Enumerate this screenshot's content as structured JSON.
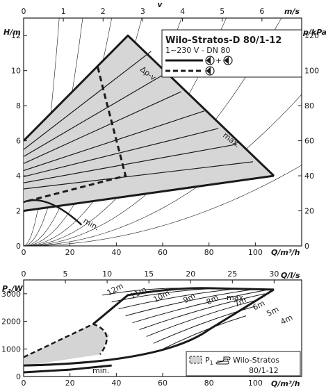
{
  "chart_data": [
    {
      "type": "line",
      "title": "Wilo-Stratos-D 80/1-12",
      "legend": {
        "line1": "1~230 V - DN 80",
        "solid_label": "+",
        "position": "top-right"
      },
      "axes": {
        "x_bottom": {
          "label": "Q/m³/h",
          "lim": [
            0,
            120
          ],
          "ticks": [
            0,
            20,
            40,
            60,
            80,
            100
          ]
        },
        "x_top": {
          "label": "m/s",
          "symbol": "v",
          "lim": [
            0,
            7
          ],
          "ticks": [
            0,
            1,
            2,
            3,
            4,
            5,
            6
          ]
        },
        "y_left": {
          "label": "H/m",
          "lim": [
            0,
            13
          ],
          "ticks": [
            0,
            2,
            4,
            6,
            8,
            10,
            12
          ]
        },
        "y_right": {
          "label": "p/kPa",
          "lim": [
            0,
            130
          ],
          "ticks": [
            0,
            20,
            40,
            60,
            80,
            100,
            120
          ]
        }
      },
      "annotations": {
        "max": "max.",
        "min": "min.",
        "dpv": "Δp-v"
      },
      "series": [
        {
          "role": "max",
          "points": [
            [
              0,
              6.0
            ],
            [
              45,
              12.0
            ],
            [
              108,
              4.0
            ]
          ]
        },
        {
          "role": "lower",
          "points": [
            [
              0,
              2.0
            ],
            [
              108,
              4.0
            ]
          ]
        },
        {
          "role": "min",
          "points": [
            [
              0,
              2.5
            ],
            [
              10,
              2.7
            ],
            [
              25,
              1.2
            ]
          ]
        },
        {
          "role": "dpv_dashed",
          "points": [
            [
              32,
              10.2
            ],
            [
              35,
              8.6
            ],
            [
              44,
              4.0
            ],
            [
              0,
              2.5
            ]
          ]
        },
        {
          "role": "dpv_lines",
          "heads_at_zero": [
            2.85,
            3.3,
            3.75,
            4.2,
            4.6,
            5.05,
            5.5
          ],
          "speed_lines": [
            {
              "h0": 5.5,
              "q1": 55,
              "h1": 11.1
            },
            {
              "h0": 5.1,
              "q1": 62,
              "h1": 9.9
            },
            {
              "h0": 4.7,
              "q1": 68,
              "h1": 8.8
            },
            {
              "h0": 4.3,
              "q1": 78,
              "h1": 7.7
            },
            {
              "h0": 3.95,
              "q1": 84,
              "h1": 6.7
            },
            {
              "h0": 3.6,
              "q1": 92,
              "h1": 5.8
            },
            {
              "h0": 3.25,
              "q1": 99,
              "h1": 4.8
            }
          ]
        }
      ]
    },
    {
      "type": "line",
      "axes": {
        "x_bottom": {
          "label": "Q/m³/h",
          "lim": [
            0,
            120
          ],
          "ticks": [
            0,
            20,
            40,
            60,
            80,
            100
          ]
        },
        "x_top": {
          "label": "Q/l/s",
          "lim": [
            0,
            33.3
          ],
          "ticks": [
            0,
            5,
            10,
            15,
            20,
            25,
            30
          ]
        },
        "y_left": {
          "label": "P1/W",
          "lim": [
            0,
            3500
          ],
          "ticks": [
            0,
            1000,
            2000,
            3000
          ]
        }
      },
      "series_labels": [
        "12m",
        "11m",
        "10m",
        "9m",
        "8m",
        "7m",
        "6m",
        "5m",
        "4m"
      ],
      "annotations": {
        "max": "max.",
        "min": "min."
      },
      "legend": {
        "p1": "P",
        "sub": "1",
        "brand": "Wilo-Stratos",
        "model": "80/1-12",
        "position": "bottom-right"
      },
      "series": [
        {
          "role": "max",
          "points": [
            [
              30,
              1900
            ],
            [
              45,
              2950
            ],
            [
              80,
              3200
            ],
            [
              108,
              3150
            ]
          ]
        },
        {
          "role": "min",
          "points": [
            [
              0,
              150
            ],
            [
              20,
              250
            ],
            [
              38,
              400
            ]
          ]
        },
        {
          "role": "dpv_boundary",
          "points": [
            [
              0,
              700
            ],
            [
              30,
              1900
            ],
            [
              37,
              1500
            ],
            [
              33,
              800
            ],
            [
              0,
              380
            ]
          ]
        },
        {
          "role": "lower",
          "points": [
            [
              0,
              400
            ],
            [
              40,
              600
            ],
            [
              80,
              1700
            ],
            [
              108,
              3150
            ]
          ]
        }
      ]
    }
  ]
}
